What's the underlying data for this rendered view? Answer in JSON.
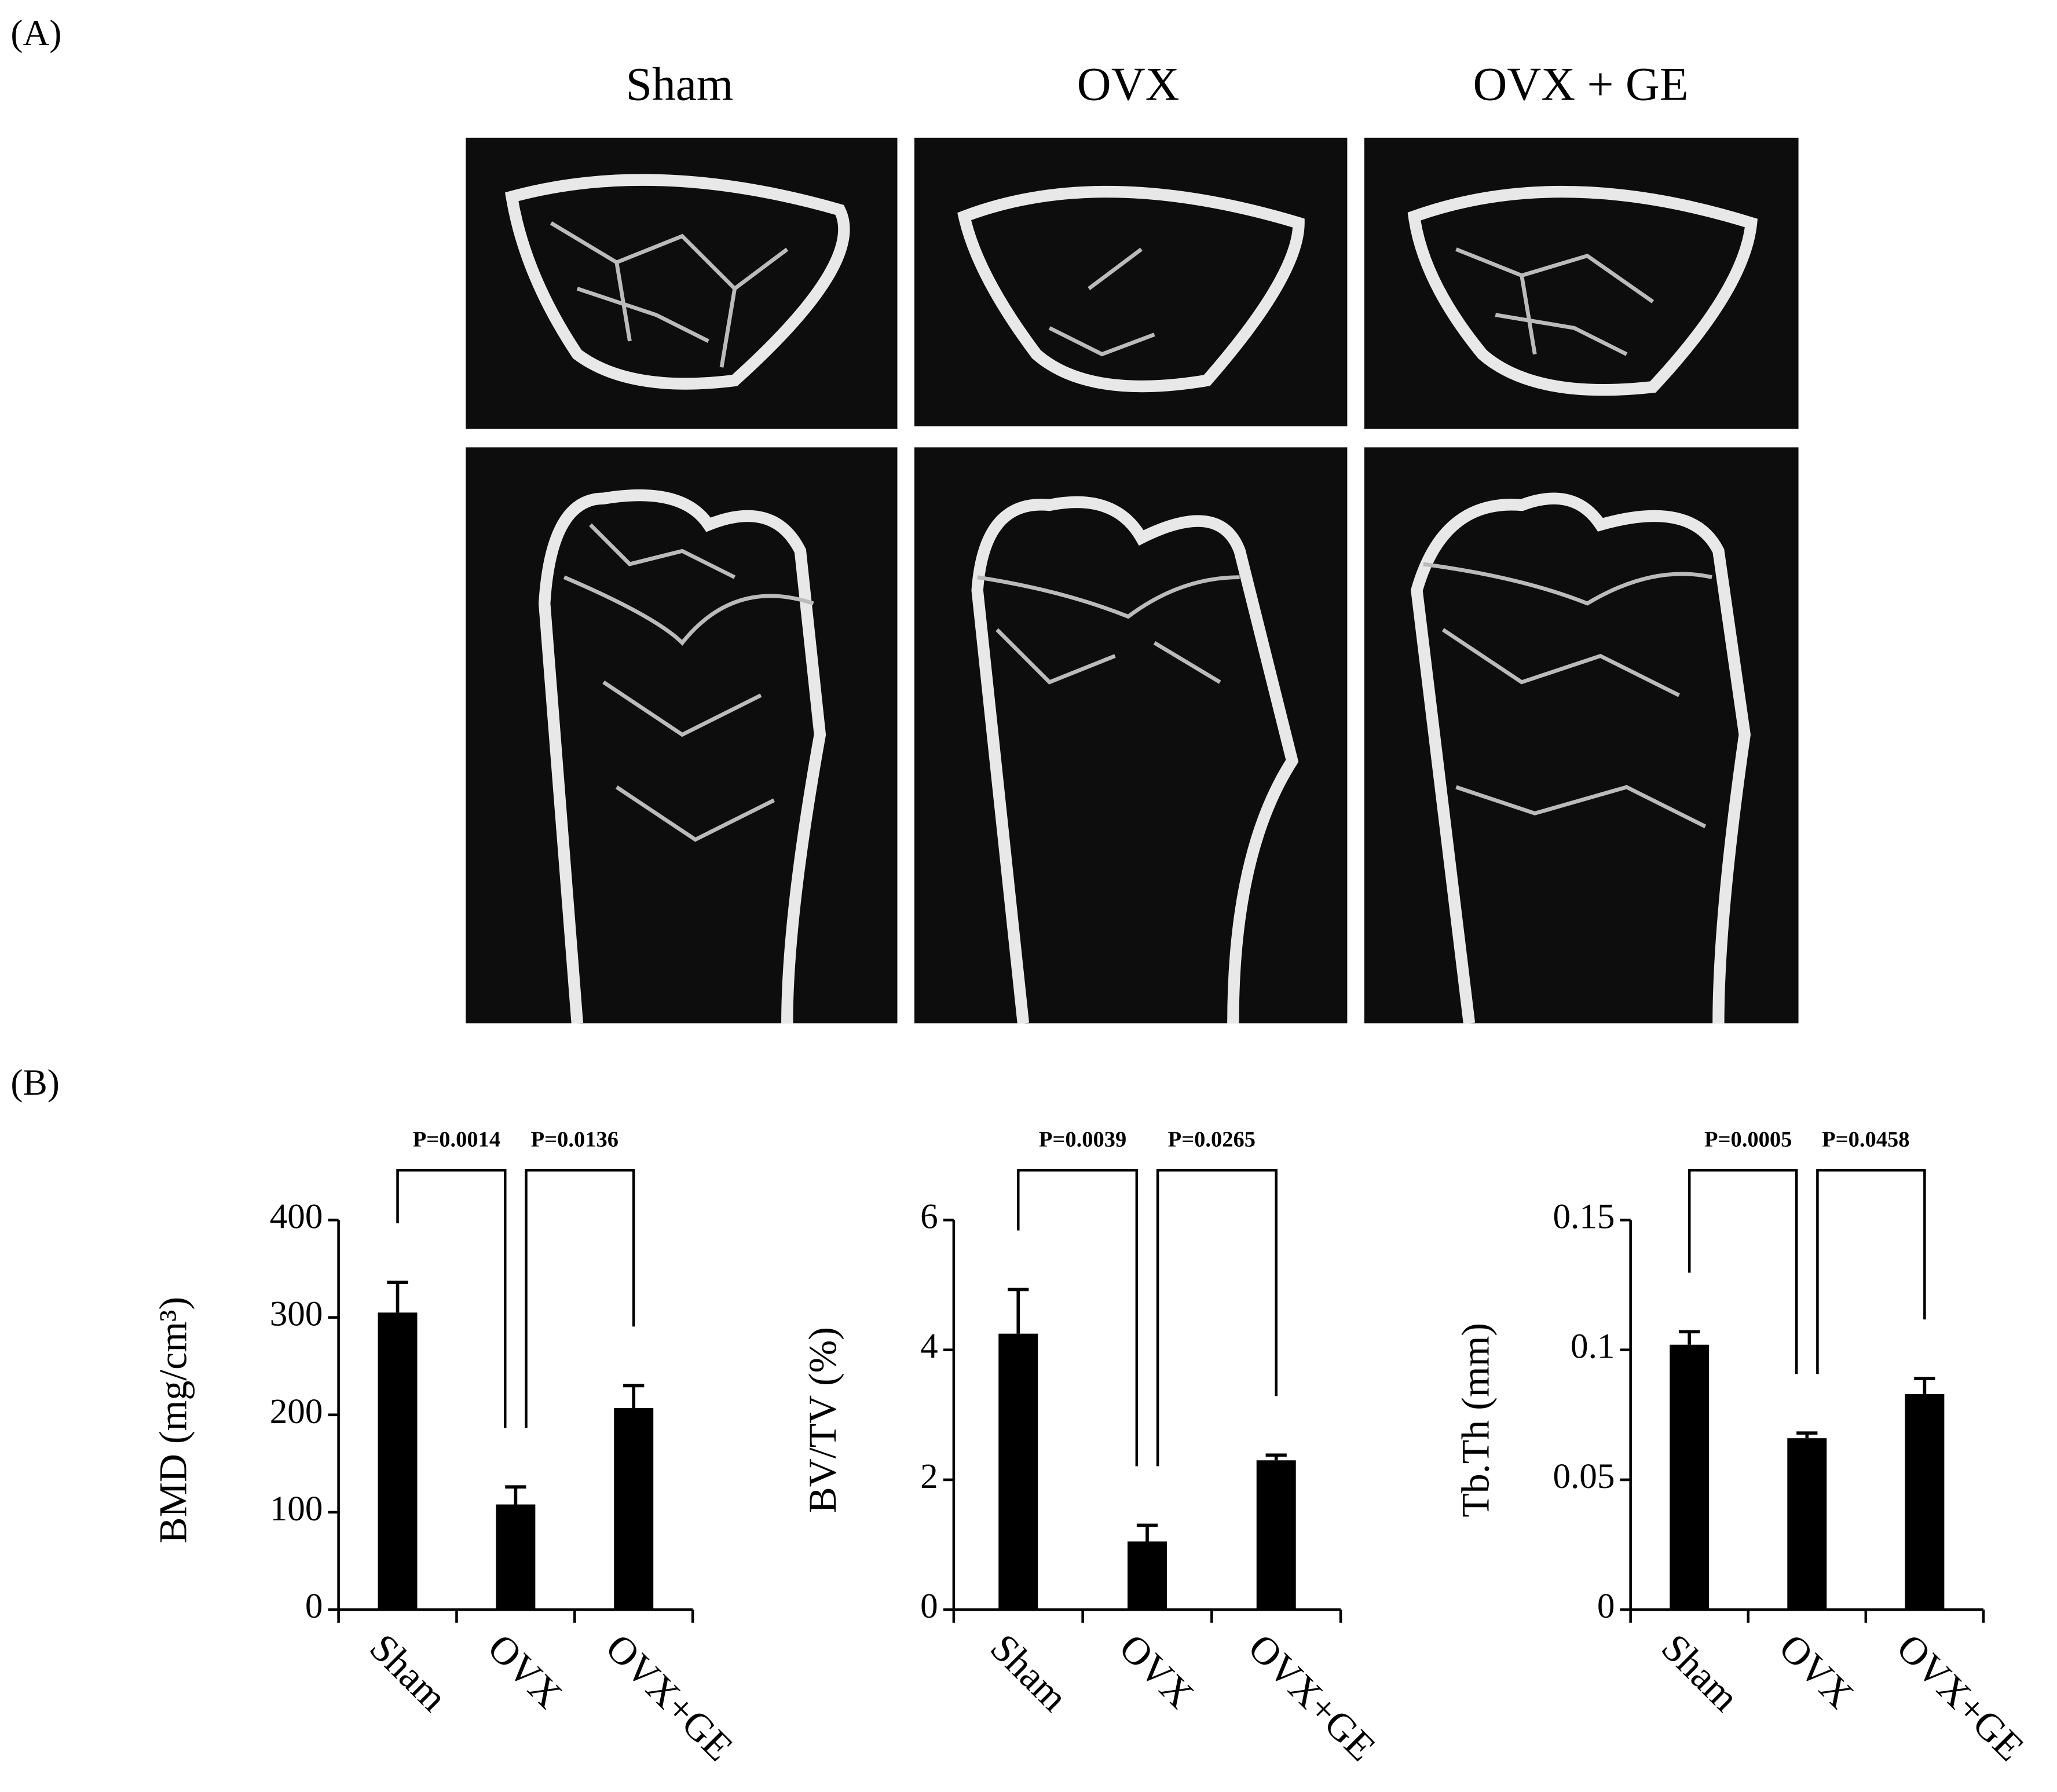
{
  "panel_a": {
    "label": "(A)",
    "columns": [
      "Sham",
      "OVX",
      "OVX + GE"
    ]
  },
  "panel_b": {
    "label": "(B)"
  },
  "chart_data": [
    {
      "type": "bar",
      "ylabel": "BMD (mg/cm³)",
      "categories": [
        "Sham",
        "OVX",
        "OVX+GE"
      ],
      "values": [
        305,
        108,
        207
      ],
      "errors": [
        31,
        18,
        23
      ],
      "color": "#000000",
      "ylim": [
        0,
        400
      ],
      "yticks": [
        0,
        100,
        200,
        300,
        400
      ],
      "annotations": [
        "P=0.0014",
        "P=0.0136"
      ]
    },
    {
      "type": "bar",
      "ylabel": "BV/TV (%)",
      "categories": [
        "Sham",
        "OVX",
        "OVX+GE"
      ],
      "values": [
        4.25,
        1.05,
        2.3
      ],
      "errors": [
        0.68,
        0.25,
        0.08
      ],
      "color": "#000000",
      "ylim": [
        0,
        6
      ],
      "yticks": [
        0,
        2,
        4,
        6
      ],
      "annotations": [
        "P=0.0039",
        "P=0.0265"
      ]
    },
    {
      "type": "bar",
      "ylabel": "Tb.Th (mm)",
      "categories": [
        "Sham",
        "OVX",
        "OVX+GE"
      ],
      "values": [
        0.102,
        0.066,
        0.083
      ],
      "errors": [
        0.005,
        0.002,
        0.006
      ],
      "color": "#000000",
      "ylim": [
        0,
        0.15
      ],
      "yticks": [
        0,
        0.05,
        0.1,
        0.15
      ],
      "annotations": [
        "P=0.0005",
        "P=0.0458"
      ]
    }
  ]
}
